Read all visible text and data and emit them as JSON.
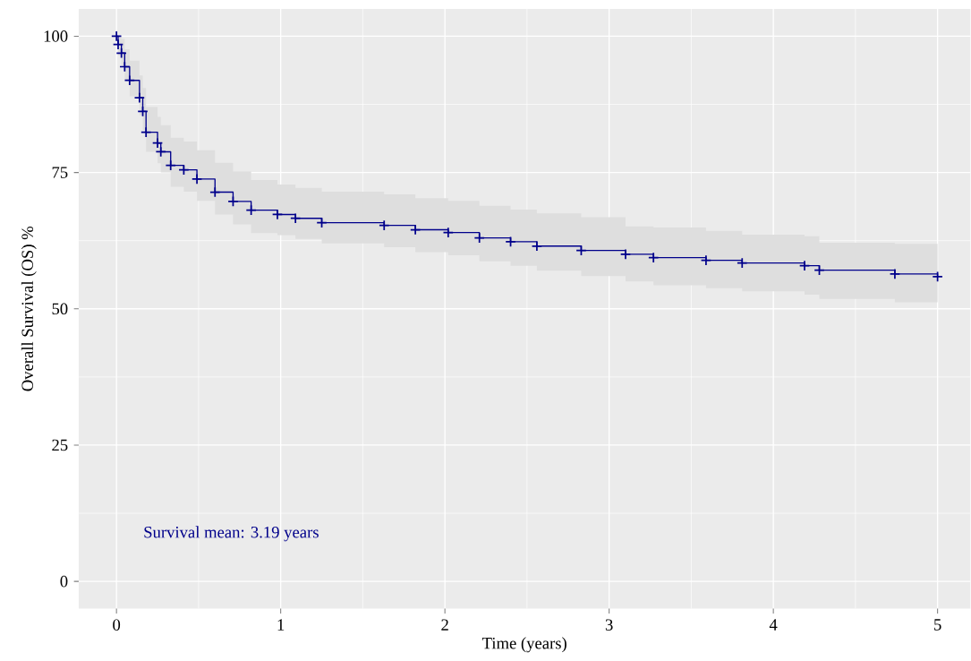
{
  "chart_data": {
    "type": "step",
    "xlabel": "Time (years)",
    "ylabel": "Overall Survival (OS) %",
    "annotations": [
      "Survival mean: 3.19 years"
    ],
    "x": [
      0,
      0.01,
      0.03,
      0.05,
      0.08,
      0.14,
      0.16,
      0.18,
      0.25,
      0.27,
      0.33,
      0.41,
      0.49,
      0.6,
      0.71,
      0.82,
      0.98,
      1.09,
      1.25,
      1.63,
      1.82,
      2.02,
      2.21,
      2.4,
      2.56,
      2.83,
      3.1,
      3.27,
      3.59,
      3.81,
      4.19,
      4.28,
      4.74,
      5.0
    ],
    "series": [
      {
        "color": "#00008b",
        "values": [
          100,
          98.5,
          96.9,
          94.4,
          91.9,
          88.7,
          86.2,
          82.4,
          80.4,
          78.8,
          76.3,
          75.5,
          73.8,
          71.4,
          69.7,
          68.1,
          67.3,
          66.6,
          65.8,
          65.3,
          64.5,
          64.0,
          63.0,
          62.3,
          61.5,
          60.7,
          60.0,
          59.4,
          58.9,
          58.4,
          57.9,
          57.1,
          56.4,
          55.9
        ],
        "upper": [
          100,
          100,
          99.5,
          97.6,
          95.5,
          92.8,
          90.5,
          87.0,
          85.2,
          83.7,
          81.4,
          80.7,
          79.1,
          76.8,
          75.2,
          73.6,
          72.8,
          72.2,
          71.5,
          71.0,
          70.3,
          69.8,
          68.9,
          68.2,
          67.5,
          66.8,
          65.1,
          64.9,
          64.3,
          63.6,
          63.3,
          62.1,
          61.9,
          61.8
        ],
        "lower": [
          100,
          96.5,
          94.5,
          91.8,
          89.0,
          85.5,
          82.8,
          78.8,
          76.7,
          75.0,
          72.4,
          71.5,
          69.8,
          67.3,
          65.5,
          63.9,
          63.5,
          62.8,
          62.0,
          61.3,
          60.4,
          59.8,
          58.7,
          57.9,
          57.0,
          56.0,
          55.0,
          54.3,
          53.8,
          53.2,
          52.6,
          51.8,
          51.2,
          51.2
        ]
      }
    ],
    "xlim": [
      -0.23,
      5.2
    ],
    "ylim": [
      -5,
      105
    ],
    "xticks": [
      0,
      1,
      2,
      3,
      4,
      5
    ],
    "yticks": [
      0,
      25,
      50,
      75,
      100
    ],
    "grid": true,
    "marker": "cross",
    "line_style": "solid"
  }
}
